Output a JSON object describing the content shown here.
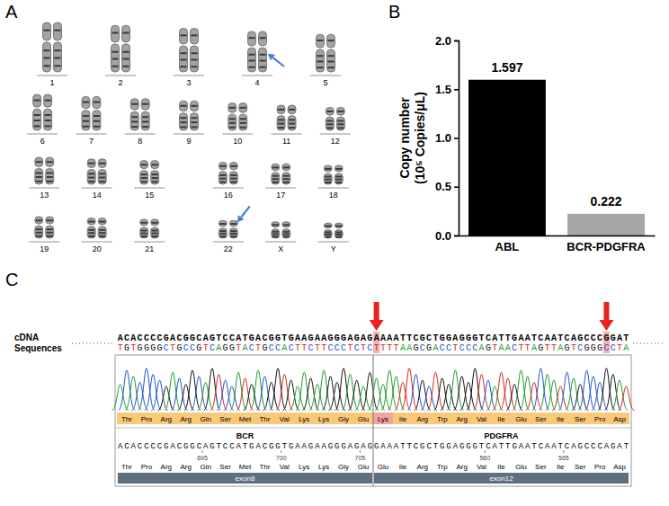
{
  "karyotype": {
    "label": "A",
    "rows": [
      [
        [
          "1",
          "2",
          "3",
          "4",
          "5"
        ]
      ],
      [
        [
          "6",
          "7",
          "8",
          "9",
          "10",
          "11",
          "12"
        ]
      ],
      [
        [
          "13",
          "14",
          "15"
        ],
        [
          "16",
          "17",
          "18"
        ]
      ],
      [
        [
          "19",
          "20",
          "21"
        ],
        [
          "22",
          "X",
          "Y"
        ]
      ]
    ],
    "marked": [
      "4",
      "22"
    ]
  },
  "chart_data": {
    "label": "B",
    "type": "bar",
    "categories": [
      "ABL",
      "BCR-PDGFRA"
    ],
    "values": [
      1.597,
      0.222
    ],
    "colors": [
      "#000000",
      "#a6a6a6"
    ],
    "ylabel": "Copy number (10⁵ Copies/μL)",
    "ylim": [
      0,
      2.0
    ],
    "yticks": [
      {
        "value": 0,
        "label": "0.0"
      },
      0.5,
      {
        "value": 1.0,
        "label": "1.0"
      },
      1.5,
      {
        "value": 2.0,
        "label": "2.0"
      }
    ],
    "data_labels": true
  },
  "sequencing": {
    "label": "C",
    "row_title": "cDNA Sequences",
    "sample_sequence": "ACACCCCGACGGCAGTCCATGACGGTGAAGAAGGGAGAGAAAATTCGCTGGAGGGTCATTGAATCAATCAGCCCGGAT",
    "sample_complement": "TGTGGGGCTGCCGTCAGGTACTGCCACTTCTTCCCTCTCTTTTAAGCGACCTCCCAGTAACTTAGTTAGTCGGGCCTA",
    "sample_amino_acids": [
      "Thr",
      "Pro",
      "Arg",
      "Arg",
      "Gln",
      "Ser",
      "Met",
      "Thr",
      "Val",
      "Lys",
      "Lys",
      "Gly",
      "Glu",
      "Lys",
      "Ile",
      "Arg",
      "Trp",
      "Arg",
      "Val",
      "Ile",
      "Glu",
      "Ser",
      "Ile",
      "Ser",
      "Pro",
      "Asp"
    ],
    "reference": [
      {
        "gene": "BCR",
        "sequence": "ACACCCCGACGGCAGTCCATGACGGTGAAGAAGGGAGAG",
        "amino_acids": [
          "Thr",
          "Pro",
          "Arg",
          "Arg",
          "Gln",
          "Ser",
          "Met",
          "Thr",
          "Val",
          "Lys",
          "Lys",
          "Gly",
          "Glu"
        ],
        "positions": [
          695,
          700,
          705
        ],
        "exon": "exon8"
      },
      {
        "gene": "PDGFRA",
        "sequence": "GAAATTCGCTGGAGGGTCATTGAATCAATCAGCCCAGAT",
        "amino_acids": [
          "Glu",
          "Ile",
          "Arg",
          "Trp",
          "Arg",
          "Val",
          "Ile",
          "Glu",
          "Ser",
          "Ile",
          "Ser",
          "Pro",
          "Asp"
        ],
        "positions": [
          560,
          565
        ],
        "exon": "exon12"
      }
    ]
  }
}
